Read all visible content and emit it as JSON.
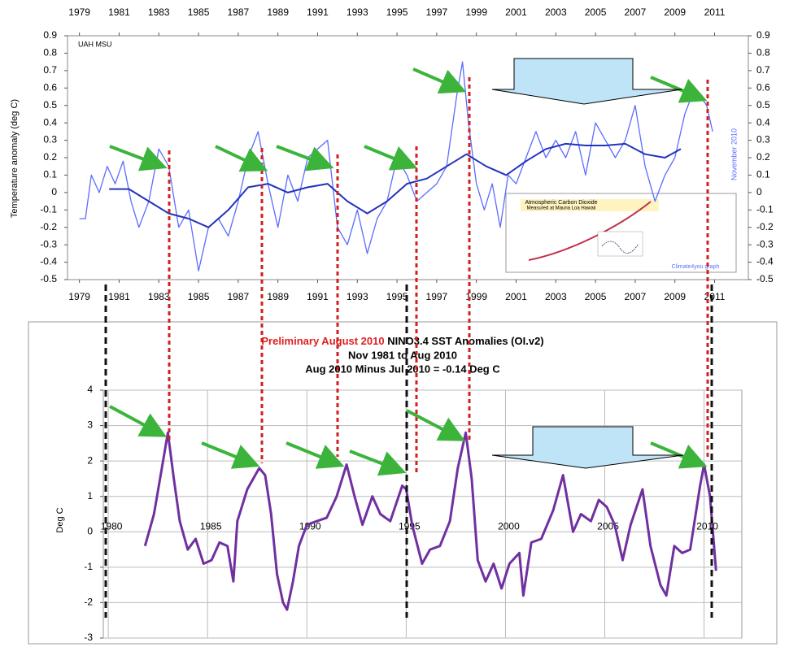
{
  "chart_data": [
    {
      "type": "line",
      "y_label": "Temperature anomaly (deg C)",
      "annotations": [
        "UAH MSU",
        "November 2010"
      ],
      "inset": {
        "title": "Atmospheric Carbon Dioxide",
        "subtitle": "Measured at Mauna Loa Hawaii",
        "credit": "Climate4you graph"
      },
      "xlim": [
        1978.4,
        2012.7
      ],
      "xticks": [
        1979,
        1981,
        1983,
        1985,
        1987,
        1989,
        1991,
        1993,
        1995,
        1997,
        1999,
        2001,
        2003,
        2005,
        2007,
        2009,
        2011
      ],
      "ylim": [
        -0.5,
        0.9
      ],
      "yticks": [
        -0.5,
        -0.4,
        -0.3,
        -0.2,
        -0.1,
        0,
        0.1,
        0.2,
        0.3,
        0.4,
        0.5,
        0.6,
        0.7,
        0.8,
        0.9
      ],
      "series": [
        {
          "color": "#5b6cff",
          "x": [
            1979.0,
            1979.3,
            1979.6,
            1980.0,
            1980.4,
            1980.8,
            1981.2,
            1981.6,
            1982.0,
            1982.5,
            1983.0,
            1983.5,
            1984.0,
            1984.5,
            1985.0,
            1985.5,
            1986.0,
            1986.5,
            1987.0,
            1987.5,
            1988.0,
            1988.5,
            1989.0,
            1989.5,
            1990.0,
            1990.5,
            1991.0,
            1991.5,
            1992.0,
            1992.5,
            1993.0,
            1993.5,
            1994.0,
            1994.5,
            1995.0,
            1995.5,
            1996.0,
            1996.5,
            1997.0,
            1997.5,
            1998.0,
            1998.3,
            1998.6,
            1999.0,
            1999.4,
            1999.8,
            2000.2,
            2000.6,
            2001.0,
            2001.5,
            2002.0,
            2002.5,
            2003.0,
            2003.5,
            2004.0,
            2004.5,
            2005.0,
            2005.5,
            2006.0,
            2006.5,
            2007.0,
            2007.5,
            2008.0,
            2008.5,
            2009.0,
            2009.5,
            2010.0,
            2010.3,
            2010.6,
            2010.9
          ],
          "values": [
            -0.15,
            -0.15,
            0.1,
            0.0,
            0.15,
            0.05,
            0.18,
            -0.05,
            -0.2,
            -0.05,
            0.25,
            0.15,
            -0.2,
            -0.1,
            -0.45,
            -0.2,
            -0.15,
            -0.25,
            -0.05,
            0.2,
            0.35,
            0.05,
            -0.2,
            0.1,
            -0.05,
            0.2,
            0.25,
            0.3,
            -0.2,
            -0.3,
            -0.1,
            -0.35,
            -0.15,
            -0.05,
            0.2,
            0.1,
            -0.05,
            0.0,
            0.05,
            0.15,
            0.55,
            0.75,
            0.4,
            0.05,
            -0.1,
            0.05,
            -0.2,
            0.1,
            0.05,
            0.2,
            0.35,
            0.2,
            0.3,
            0.2,
            0.35,
            0.1,
            0.4,
            0.3,
            0.2,
            0.3,
            0.5,
            0.15,
            -0.05,
            0.1,
            0.2,
            0.45,
            0.6,
            0.55,
            0.5,
            0.35
          ]
        },
        {
          "color": "#2233bb",
          "x": [
            1980.5,
            1981.5,
            1982.5,
            1983.5,
            1984.5,
            1985.5,
            1986.5,
            1987.5,
            1988.5,
            1989.5,
            1990.5,
            1991.5,
            1992.5,
            1993.5,
            1994.5,
            1995.5,
            1996.5,
            1997.5,
            1998.5,
            1999.5,
            2000.5,
            2001.5,
            2002.5,
            2003.5,
            2004.5,
            2005.5,
            2006.5,
            2007.5,
            2008.5,
            2009.3
          ],
          "values": [
            0.02,
            0.02,
            -0.05,
            -0.12,
            -0.15,
            -0.2,
            -0.1,
            0.03,
            0.05,
            0.0,
            0.03,
            0.05,
            -0.05,
            -0.12,
            -0.05,
            0.05,
            0.08,
            0.15,
            0.22,
            0.15,
            0.1,
            0.18,
            0.25,
            0.28,
            0.27,
            0.27,
            0.28,
            0.22,
            0.2,
            0.25
          ]
        }
      ]
    },
    {
      "type": "line",
      "title_red": "Preliminary August 2010",
      "title": "NINO3.4 SST Anomalies (OI.v2)",
      "subtitle": "Nov 1981 to Aug 2010",
      "subtitle2": "Aug 2010 Minus Jul 2010 = -0.14 Deg C",
      "y_label": "Deg C",
      "xlim": [
        1979.75,
        2011.9
      ],
      "xticks": [
        1980,
        1985,
        1990,
        1995,
        2000,
        2005,
        2010
      ],
      "ylim": [
        -3,
        4
      ],
      "yticks": [
        -3,
        -2,
        -1,
        0,
        1,
        2,
        3,
        4
      ],
      "series": [
        {
          "color": "#7030a0",
          "x": [
            1981.85,
            1982.3,
            1982.7,
            1983.0,
            1983.3,
            1983.6,
            1984.0,
            1984.4,
            1984.8,
            1985.2,
            1985.6,
            1986.0,
            1986.3,
            1986.5,
            1987.0,
            1987.6,
            1987.9,
            1988.2,
            1988.5,
            1988.8,
            1989.0,
            1989.3,
            1989.6,
            1990.0,
            1990.5,
            1991.0,
            1991.5,
            1992.0,
            1992.4,
            1992.8,
            1993.3,
            1993.7,
            1994.2,
            1994.8,
            1995.0,
            1995.3,
            1995.8,
            1996.2,
            1996.7,
            1997.2,
            1997.6,
            1998.0,
            1998.3,
            1998.6,
            1999.0,
            1999.4,
            1999.8,
            2000.2,
            2000.7,
            2000.9,
            2001.3,
            2001.8,
            2002.4,
            2002.9,
            2003.4,
            2003.8,
            2004.3,
            2004.7,
            2005.1,
            2005.5,
            2005.9,
            2006.3,
            2006.9,
            2007.3,
            2007.8,
            2008.1,
            2008.5,
            2008.9,
            2009.3,
            2009.8,
            2010.0,
            2010.3,
            2010.6
          ],
          "values": [
            -0.4,
            0.5,
            1.8,
            2.8,
            1.5,
            0.3,
            -0.5,
            -0.2,
            -0.9,
            -0.8,
            -0.3,
            -0.4,
            -1.4,
            0.3,
            1.2,
            1.8,
            1.6,
            0.5,
            -1.2,
            -2.0,
            -2.2,
            -1.4,
            -0.4,
            0.2,
            0.3,
            0.4,
            1.0,
            1.9,
            1.0,
            0.2,
            1.0,
            0.5,
            0.3,
            1.3,
            1.2,
            0.2,
            -0.9,
            -0.5,
            -0.4,
            0.3,
            1.8,
            2.8,
            1.5,
            -0.8,
            -1.4,
            -0.9,
            -1.6,
            -0.9,
            -0.6,
            -1.8,
            -0.3,
            -0.2,
            0.6,
            1.6,
            0.0,
            0.5,
            0.3,
            0.9,
            0.7,
            0.2,
            -0.8,
            0.2,
            1.2,
            -0.4,
            -1.5,
            -1.8,
            -0.4,
            -0.6,
            -0.5,
            1.3,
            1.9,
            1.0,
            -1.1
          ]
        }
      ]
    }
  ]
}
